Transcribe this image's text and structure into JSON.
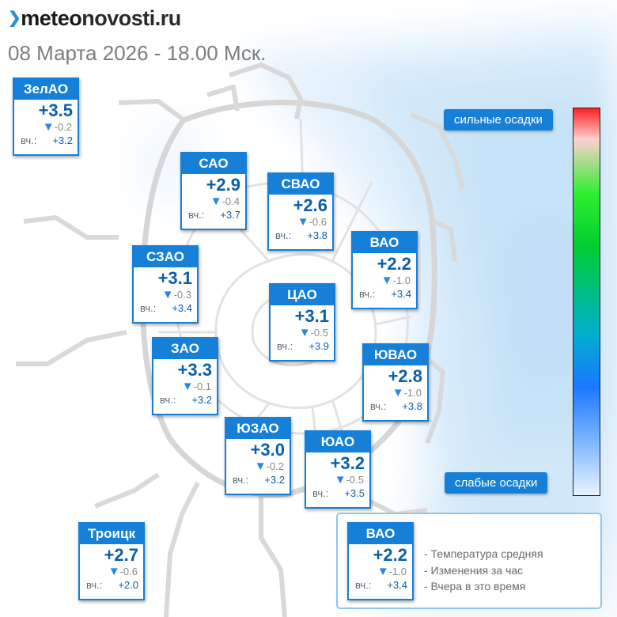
{
  "header": {
    "logo_part1": "meteo",
    "logo_part2": "novosti.ru",
    "timestamp": "08 Марта 2026 - 18.00 Мск."
  },
  "colors": {
    "accent": "#1680d8",
    "temp_text": "#0b5ea8",
    "arrow": "#2a86e6",
    "map_lines": "#d8d8d8",
    "precip_light": "#e6f2fc",
    "precip_medium": "#bcdcf6"
  },
  "scale": {
    "strong_label": "сильные осадки",
    "weak_label": "слабые осадки"
  },
  "change_icon": "triangle-down-icon",
  "districts": [
    {
      "name": "ЗелАО",
      "temp": "+3.5",
      "change": "-0.2",
      "yesterday_label": "вч.:",
      "yesterday": "+3.2"
    },
    {
      "name": "САО",
      "temp": "+2.9",
      "change": "-0.4",
      "yesterday_label": "вч.:",
      "yesterday": "+3.7"
    },
    {
      "name": "СВАО",
      "temp": "+2.6",
      "change": "-0.6",
      "yesterday_label": "вч.:",
      "yesterday": "+3.8"
    },
    {
      "name": "ВАО",
      "temp": "+2.2",
      "change": "-1.0",
      "yesterday_label": "вч.:",
      "yesterday": "+3.4"
    },
    {
      "name": "СЗАО",
      "temp": "+3.1",
      "change": "-0.3",
      "yesterday_label": "вч.:",
      "yesterday": "+3.4"
    },
    {
      "name": "ЦАО",
      "temp": "+3.1",
      "change": "-0.5",
      "yesterday_label": "вч.:",
      "yesterday": "+3.9"
    },
    {
      "name": "ЗАО",
      "temp": "+3.3",
      "change": "-0.1",
      "yesterday_label": "вч.:",
      "yesterday": "+3.2"
    },
    {
      "name": "ЮВАО",
      "temp": "+2.8",
      "change": "-1.0",
      "yesterday_label": "вч.:",
      "yesterday": "+3.8"
    },
    {
      "name": "ЮЗАО",
      "temp": "+3.0",
      "change": "-0.2",
      "yesterday_label": "вч.:",
      "yesterday": "+3.2"
    },
    {
      "name": "ЮАО",
      "temp": "+3.2",
      "change": "-0.5",
      "yesterday_label": "вч.:",
      "yesterday": "+3.5"
    },
    {
      "name": "Троицк",
      "temp": "+2.7",
      "change": "-0.6",
      "yesterday_label": "вч.:",
      "yesterday": "+2.0"
    }
  ],
  "legend": {
    "example": {
      "name": "ВАО",
      "temp": "+2.2",
      "change": "-1.0",
      "yesterday_label": "вч.:",
      "yesterday": "+3.4"
    },
    "lines": [
      "- Температура средняя",
      "- Изменения за час",
      "- Вчера в это время"
    ]
  }
}
